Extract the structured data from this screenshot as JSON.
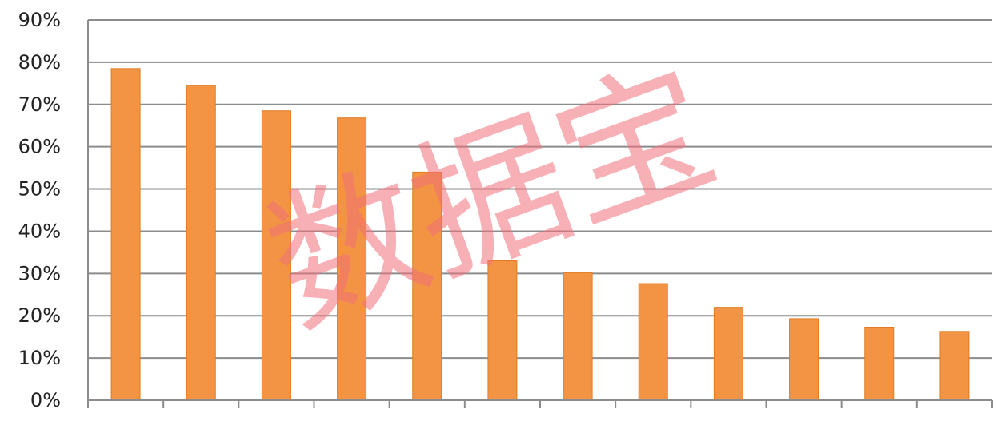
{
  "chart_data": {
    "type": "bar",
    "title": "",
    "xlabel": "",
    "ylabel": "",
    "categories": [
      "",
      "",
      "",
      "",
      "",
      "",
      "",
      "",
      "",
      "",
      "",
      ""
    ],
    "values": [
      78.5,
      74.5,
      68.5,
      66.8,
      54,
      33,
      30.2,
      27.6,
      22,
      19.3,
      17.3,
      16.3
    ],
    "ylim": [
      0,
      90
    ],
    "yticks": [
      "0%",
      "10%",
      "20%",
      "30%",
      "40%",
      "50%",
      "60%",
      "70%",
      "80%",
      "90%"
    ],
    "grid": true,
    "legend": "none",
    "colors": {
      "bar": "#F29444",
      "bar_edge": "#E07B24",
      "grid": "#8c8c8c",
      "axis": "#8c8c8c"
    }
  },
  "watermark": {
    "text": "数据宝",
    "color": "#F0707A"
  }
}
